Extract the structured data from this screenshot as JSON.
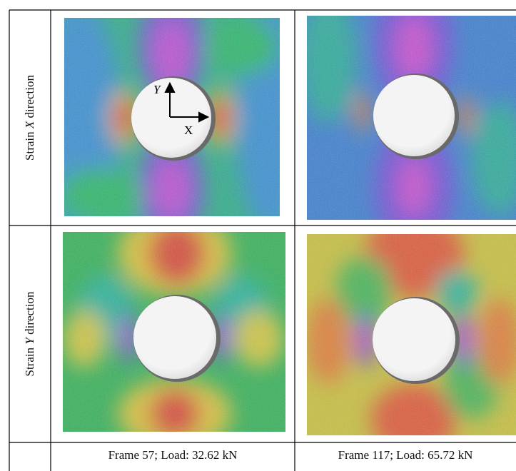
{
  "table": {
    "rows": [
      {
        "label": {
          "prefix": "Strain",
          "axis": "X",
          "suffix": "direction"
        }
      },
      {
        "label": {
          "prefix": "Strain",
          "axis": "Y",
          "suffix": "direction"
        }
      }
    ],
    "captions": [
      "Frame 57; Load: 32.62 kN",
      "Frame 117; Load: 65.72 kN"
    ],
    "axes": {
      "x": "X",
      "y": "Y"
    }
  }
}
